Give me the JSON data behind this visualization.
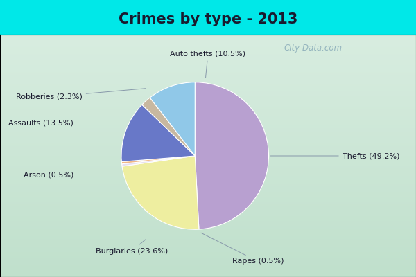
{
  "title": "Crimes by type - 2013",
  "labels": [
    "Thefts",
    "Burglaries",
    "Rapes",
    "Arson",
    "Assaults",
    "Robberies",
    "Auto thefts"
  ],
  "percentages": [
    49.2,
    23.6,
    0.5,
    0.5,
    13.5,
    2.3,
    10.5
  ],
  "colors": [
    "#b8a0d0",
    "#eeeea0",
    "#e8e0f0",
    "#f0b888",
    "#6878c8",
    "#c8b8a0",
    "#90c8e8"
  ],
  "label_texts": [
    "Thefts (49.2%)",
    "Burglaries (23.6%)",
    "Rapes (0.5%)",
    "Arson (0.5%)",
    "Assaults (13.5%)",
    "Robberies (2.3%)",
    "Auto thefts (10.5%)"
  ],
  "bg_color": "#00e8e8",
  "inner_bg_top": "#d8ede0",
  "inner_bg_bot": "#c8e8d0",
  "title_fontsize": 15,
  "label_fontsize": 8,
  "figsize": [
    6.0,
    4.0
  ],
  "dpi": 100,
  "title_color": "#1a1a2e",
  "label_color": "#1a1a2e",
  "watermark": "City-Data.com",
  "watermark_color": "#88aab8"
}
